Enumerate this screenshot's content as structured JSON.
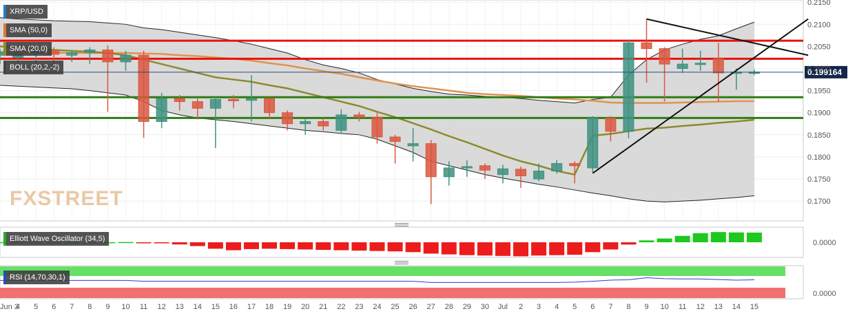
{
  "chart_data": {
    "type": "candlestick",
    "pair": "XRP/USD",
    "indicators": {
      "sma50_label": "SMA (50,0)",
      "sma20_label": "SMA (20,0)",
      "boll_label": "BOLL (20,2,-2)",
      "ewo_label": "Elliott Wave Oscillator (34,5)",
      "rsi_label": "RSI (14,70,30,1)"
    },
    "price_axis": {
      "ticks": [
        "0.2150",
        "0.2100",
        "0.2050",
        "0.2000",
        "0.1950",
        "0.1900",
        "0.1850",
        "0.1800",
        "0.1750",
        "0.1700"
      ],
      "ylim": [
        0.1655,
        0.2155
      ]
    },
    "current_price": "0.199164",
    "ewo_axis_label": "0.0000",
    "rsi_axis_label": "0.0000",
    "x_labels": [
      "Jun 3",
      "4",
      "5",
      "6",
      "7",
      "8",
      "9",
      "10",
      "11",
      "12",
      "13",
      "14",
      "15",
      "16",
      "17",
      "18",
      "19",
      "20",
      "21",
      "22",
      "23",
      "24",
      "25",
      "26",
      "27",
      "28",
      "29",
      "30",
      "Jul",
      "2",
      "3",
      "4",
      "5",
      "6",
      "7",
      "8",
      "9",
      "10",
      "11",
      "12",
      "13",
      "14",
      "15"
    ],
    "candles": [
      {
        "o": 0.203,
        "h": 0.2045,
        "l": 0.201,
        "c": 0.2038
      },
      {
        "o": 0.2025,
        "h": 0.204,
        "l": 0.2005,
        "c": 0.2032
      },
      {
        "o": 0.2035,
        "h": 0.2045,
        "l": 0.201,
        "c": 0.204
      },
      {
        "o": 0.204,
        "h": 0.2048,
        "l": 0.201,
        "c": 0.2032
      },
      {
        "o": 0.203,
        "h": 0.204,
        "l": 0.2015,
        "c": 0.2036
      },
      {
        "o": 0.2036,
        "h": 0.2048,
        "l": 0.201,
        "c": 0.2042
      },
      {
        "o": 0.2042,
        "h": 0.2052,
        "l": 0.1902,
        "c": 0.2015
      },
      {
        "o": 0.2015,
        "h": 0.204,
        "l": 0.1995,
        "c": 0.203
      },
      {
        "o": 0.203,
        "h": 0.204,
        "l": 0.1843,
        "c": 0.188
      },
      {
        "o": 0.188,
        "h": 0.1945,
        "l": 0.1865,
        "c": 0.1932
      },
      {
        "o": 0.1932,
        "h": 0.194,
        "l": 0.1905,
        "c": 0.1925
      },
      {
        "o": 0.1925,
        "h": 0.1932,
        "l": 0.1885,
        "c": 0.191
      },
      {
        "o": 0.191,
        "h": 0.1938,
        "l": 0.182,
        "c": 0.193
      },
      {
        "o": 0.193,
        "h": 0.194,
        "l": 0.191,
        "c": 0.1928
      },
      {
        "o": 0.1928,
        "h": 0.1985,
        "l": 0.188,
        "c": 0.1932
      },
      {
        "o": 0.1932,
        "h": 0.1935,
        "l": 0.1885,
        "c": 0.19
      },
      {
        "o": 0.19,
        "h": 0.1905,
        "l": 0.186,
        "c": 0.1875
      },
      {
        "o": 0.1875,
        "h": 0.1885,
        "l": 0.185,
        "c": 0.188
      },
      {
        "o": 0.188,
        "h": 0.1888,
        "l": 0.186,
        "c": 0.187
      },
      {
        "o": 0.186,
        "h": 0.1908,
        "l": 0.1855,
        "c": 0.1895
      },
      {
        "o": 0.1895,
        "h": 0.1902,
        "l": 0.188,
        "c": 0.189
      },
      {
        "o": 0.189,
        "h": 0.19,
        "l": 0.183,
        "c": 0.1845
      },
      {
        "o": 0.1845,
        "h": 0.185,
        "l": 0.1785,
        "c": 0.1835
      },
      {
        "o": 0.1825,
        "h": 0.1865,
        "l": 0.179,
        "c": 0.183
      },
      {
        "o": 0.183,
        "h": 0.1838,
        "l": 0.1693,
        "c": 0.1755
      },
      {
        "o": 0.1755,
        "h": 0.179,
        "l": 0.1735,
        "c": 0.1775
      },
      {
        "o": 0.1775,
        "h": 0.1792,
        "l": 0.1755,
        "c": 0.1778
      },
      {
        "o": 0.178,
        "h": 0.1785,
        "l": 0.175,
        "c": 0.177
      },
      {
        "o": 0.176,
        "h": 0.1782,
        "l": 0.174,
        "c": 0.1773
      },
      {
        "o": 0.1772,
        "h": 0.1778,
        "l": 0.173,
        "c": 0.1757
      },
      {
        "o": 0.175,
        "h": 0.1785,
        "l": 0.1745,
        "c": 0.1768
      },
      {
        "o": 0.1768,
        "h": 0.1793,
        "l": 0.1762,
        "c": 0.1785
      },
      {
        "o": 0.1785,
        "h": 0.179,
        "l": 0.174,
        "c": 0.178
      },
      {
        "o": 0.1775,
        "h": 0.1892,
        "l": 0.1765,
        "c": 0.1888
      },
      {
        "o": 0.1888,
        "h": 0.1892,
        "l": 0.1835,
        "c": 0.1858
      },
      {
        "o": 0.1858,
        "h": 0.2065,
        "l": 0.1842,
        "c": 0.2058
      },
      {
        "o": 0.2058,
        "h": 0.2112,
        "l": 0.1968,
        "c": 0.2045
      },
      {
        "o": 0.2045,
        "h": 0.2048,
        "l": 0.1925,
        "c": 0.201
      },
      {
        "o": 0.2,
        "h": 0.2045,
        "l": 0.199,
        "c": 0.201
      },
      {
        "o": 0.201,
        "h": 0.204,
        "l": 0.1995,
        "c": 0.2012
      },
      {
        "o": 0.2022,
        "h": 0.2058,
        "l": 0.1925,
        "c": 0.199
      },
      {
        "o": 0.199,
        "h": 0.2,
        "l": 0.1952,
        "c": 0.1992
      },
      {
        "o": 0.1992,
        "h": 0.1998,
        "l": 0.1985,
        "c": 0.1992
      }
    ],
    "sma20": [
      0.205,
      0.2048,
      0.2045,
      0.2042,
      0.204,
      0.2038,
      0.2035,
      0.203,
      0.202,
      0.201,
      0.2,
      0.199,
      0.198,
      0.1975,
      0.197,
      0.1962,
      0.1955,
      0.1945,
      0.1935,
      0.1925,
      0.1915,
      0.1902,
      0.189,
      0.1876,
      0.1862,
      0.1847,
      0.1833,
      0.1818,
      0.1803,
      0.179,
      0.178,
      0.1768,
      0.176,
      0.1848,
      0.1852,
      0.1858,
      0.1864,
      0.1866,
      0.187,
      0.1873,
      0.1877,
      0.188,
      0.1884
    ],
    "sma50": [
      0.2036,
      0.2036,
      0.2036,
      0.2036,
      0.2035,
      0.2035,
      0.2035,
      0.2035,
      0.2034,
      0.2033,
      0.203,
      0.2028,
      0.2025,
      0.2022,
      0.2018,
      0.2012,
      0.2007,
      0.2,
      0.1994,
      0.1988,
      0.198,
      0.1973,
      0.1966,
      0.196,
      0.1955,
      0.195,
      0.1945,
      0.1942,
      0.194,
      0.1938,
      0.1935,
      0.1932,
      0.193,
      0.1927,
      0.1923,
      0.1922,
      0.1922,
      0.1922,
      0.1923,
      0.1924,
      0.1925,
      0.1926,
      0.1926
    ],
    "boll_upper": [
      0.2115,
      0.2112,
      0.211,
      0.2108,
      0.2107,
      0.2106,
      0.2103,
      0.21,
      0.2092,
      0.2088,
      0.2082,
      0.2076,
      0.207,
      0.2063,
      0.2055,
      0.2045,
      0.2035,
      0.202,
      0.2008,
      0.2,
      0.199,
      0.1975,
      0.1965,
      0.1955,
      0.1948,
      0.1942,
      0.194,
      0.1937,
      0.1935,
      0.1932,
      0.1928,
      0.1925,
      0.1922,
      0.193,
      0.1935,
      0.1985,
      0.202,
      0.2042,
      0.2055,
      0.2066,
      0.2074,
      0.209,
      0.2105
    ],
    "boll_lower": [
      0.1962,
      0.196,
      0.1958,
      0.1956,
      0.1954,
      0.195,
      0.1945,
      0.194,
      0.1925,
      0.1905,
      0.1895,
      0.1888,
      0.1884,
      0.188,
      0.1875,
      0.187,
      0.1865,
      0.186,
      0.1857,
      0.1853,
      0.185,
      0.184,
      0.1825,
      0.181,
      0.179,
      0.178,
      0.177,
      0.176,
      0.1752,
      0.1745,
      0.1738,
      0.1732,
      0.1725,
      0.1718,
      0.1712,
      0.1705,
      0.17,
      0.1698,
      0.17,
      0.1702,
      0.1705,
      0.1708,
      0.1712
    ],
    "horizontal_levels": [
      {
        "value": 0.2063,
        "color": "#e8120c"
      },
      {
        "value": 0.2022,
        "color": "#e8120c"
      },
      {
        "value": 0.1935,
        "color": "#2e7d12"
      },
      {
        "value": 0.1888,
        "color": "#2e7d12"
      }
    ],
    "trendlines": [
      {
        "from": [
          33,
          0.1763
        ],
        "to": [
          45,
          0.2112
        ],
        "color": "#111111"
      },
      {
        "from": [
          36,
          0.2112
        ],
        "to": [
          45,
          0.203
        ],
        "color": "#111111"
      }
    ],
    "ewo": [
      0.0002,
      0.0002,
      0.0001,
      0.0001,
      0.0,
      0.0001,
      0.0001,
      0.0003,
      -0.0002,
      -0.0012,
      -0.0028,
      -0.005,
      -0.0085,
      -0.0105,
      -0.009,
      -0.0085,
      -0.009,
      -0.0095,
      -0.01,
      -0.0105,
      -0.011,
      -0.0115,
      -0.012,
      -0.013,
      -0.015,
      -0.016,
      -0.017,
      -0.0175,
      -0.018,
      -0.0185,
      -0.0175,
      -0.017,
      -0.0165,
      -0.013,
      -0.0095,
      -0.003,
      0.0025,
      0.005,
      0.0085,
      0.012,
      0.0135,
      0.013,
      0.0128
    ],
    "rsi": [
      55,
      55,
      55,
      55,
      55,
      55,
      55,
      55,
      52,
      52,
      52,
      52,
      52,
      52,
      52,
      52,
      52,
      52,
      52,
      52,
      52,
      52,
      52,
      52,
      48,
      48,
      48,
      48,
      48,
      48,
      48,
      48,
      49,
      52,
      56,
      57,
      64,
      61,
      60,
      60,
      58,
      56,
      57
    ]
  }
}
